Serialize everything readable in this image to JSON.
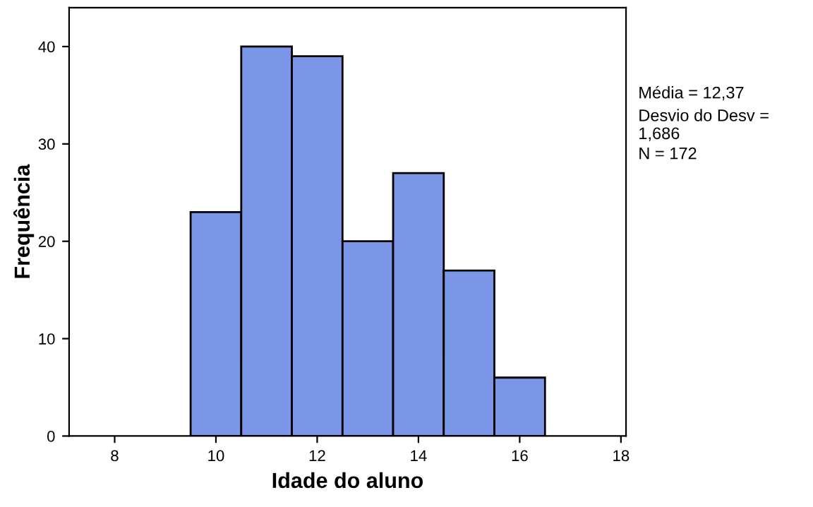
{
  "chart_data": {
    "type": "histogram",
    "xlabel": "Idade do aluno",
    "ylabel": "Frequência",
    "bins": [
      9.5,
      10.5,
      11.5,
      12.5,
      13.5,
      14.5,
      15.5,
      16.5
    ],
    "values": [
      23,
      40,
      39,
      20,
      27,
      17,
      6
    ],
    "color": "#7b96e6",
    "xlim": [
      7.1,
      18.1
    ],
    "xticks": [
      8,
      10,
      12,
      14,
      16,
      18
    ],
    "ylim": [
      0,
      44
    ],
    "yticks": [
      0,
      10,
      20,
      30,
      40
    ],
    "grid": false,
    "legend": false,
    "annotations": [
      "Média = 12,37",
      "Desvio do Desv = 1,686",
      "N = 172"
    ]
  }
}
